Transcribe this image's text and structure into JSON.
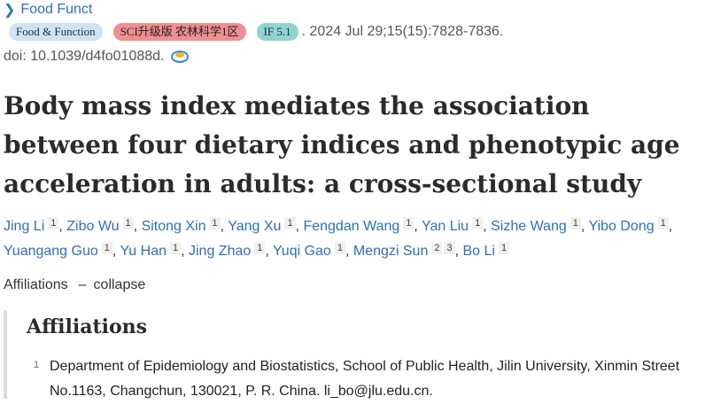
{
  "journal": {
    "link": "Food Funct"
  },
  "badges": {
    "journal_full": "Food & Function",
    "ranking": "SCI升级版 农林科学1区",
    "impact": "IF 5.1"
  },
  "citation": ". 2024 Jul 29;15(15):7828-7836.",
  "doi": "doi: 10.1039/d4fo01088d.",
  "title": "Body mass index mediates the association between four dietary indices and phenotypic age acceleration in adults: a cross-sectional study",
  "authors": [
    {
      "name": "Jing Li",
      "aff": "1"
    },
    {
      "name": "Zibo Wu",
      "aff": "1"
    },
    {
      "name": "Sitong Xin",
      "aff": "1"
    },
    {
      "name": "Yang Xu",
      "aff": "1"
    },
    {
      "name": "Fengdan Wang",
      "aff": "1"
    },
    {
      "name": "Yan Liu",
      "aff": "1"
    },
    {
      "name": "Sizhe Wang",
      "aff": "1"
    },
    {
      "name": "Yibo Dong",
      "aff": "1"
    },
    {
      "name": "Yuangang Guo",
      "aff": "1"
    },
    {
      "name": "Yu Han",
      "aff": "1"
    },
    {
      "name": "Jing Zhao",
      "aff": "1"
    },
    {
      "name": "Yuqi Gao",
      "aff": "1"
    },
    {
      "name": "Mengzi Sun",
      "aff": "2 3"
    },
    {
      "name": "Bo Li",
      "aff": "1"
    }
  ],
  "affiliations_toggle": {
    "label": "Affiliations",
    "action": "collapse"
  },
  "affiliations": {
    "heading": "Affiliations",
    "items": [
      {
        "num": "1",
        "text": "Department of Epidemiology and Biostatistics, School of Public Health, Jilin University, Xinmin Street No.1163, Changchun, 130021, P. R. China. li_bo@jlu.edu.cn."
      }
    ]
  }
}
